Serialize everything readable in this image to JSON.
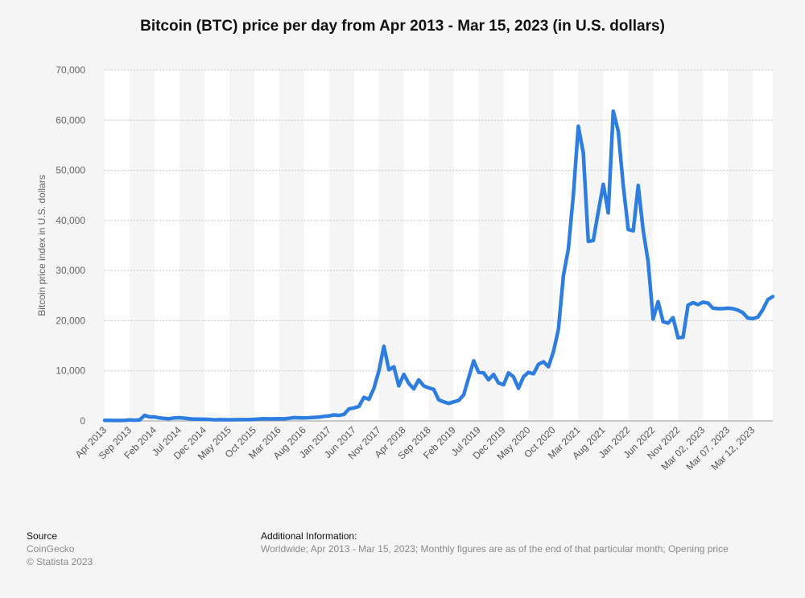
{
  "title": "Bitcoin (BTC) price per day from Apr 2013 - Mar 15, 2023 (in U.S. dollars)",
  "source": {
    "heading": "Source",
    "line1": "CoinGecko",
    "line2": "© Statista 2023"
  },
  "additional_info": {
    "heading": "Additional Information:",
    "text": "Worldwide; Apr 2013 - Mar 15, 2023; Monthly figures are as of the end of that particular month; Opening price"
  },
  "colors": {
    "line": "#2e7de0",
    "band": "#ffffff",
    "grid": "#c8c8c8",
    "background": "#f5f5f5"
  },
  "chart_data": {
    "type": "line",
    "title": "Bitcoin (BTC) price per day from Apr 2013 - Mar 15, 2023 (in U.S. dollars)",
    "ylabel": "Bitcoin price index in U.S. dollars",
    "xlabel": "",
    "ylim": [
      0,
      70000
    ],
    "yticks": [
      0,
      10000,
      20000,
      30000,
      40000,
      50000,
      60000,
      70000
    ],
    "ytick_labels": [
      "0",
      "10,000",
      "20,000",
      "30,000",
      "40,000",
      "50,000",
      "60,000",
      "70,000"
    ],
    "grid": true,
    "legend": "none",
    "xtick_labels": [
      {
        "i": 0,
        "label": "Apr 2013"
      },
      {
        "i": 5,
        "label": "Sep 2013"
      },
      {
        "i": 10,
        "label": "Feb 2014"
      },
      {
        "i": 15,
        "label": "Jul 2014"
      },
      {
        "i": 20,
        "label": "Dec 2014"
      },
      {
        "i": 25,
        "label": "May 2015"
      },
      {
        "i": 30,
        "label": "Oct 2015"
      },
      {
        "i": 35,
        "label": "Mar 2016"
      },
      {
        "i": 40,
        "label": "Aug 2016"
      },
      {
        "i": 45,
        "label": "Jan 2017"
      },
      {
        "i": 50,
        "label": "Jun 2017"
      },
      {
        "i": 55,
        "label": "Nov 2017"
      },
      {
        "i": 60,
        "label": "Apr 2018"
      },
      {
        "i": 65,
        "label": "Sep 2018"
      },
      {
        "i": 70,
        "label": "Feb 2019"
      },
      {
        "i": 75,
        "label": "Jul 2019"
      },
      {
        "i": 80,
        "label": "Dec 2019"
      },
      {
        "i": 85,
        "label": "May 2020"
      },
      {
        "i": 90,
        "label": "Oct 2020"
      },
      {
        "i": 95,
        "label": "Mar 2021"
      },
      {
        "i": 100,
        "label": "Aug 2021"
      },
      {
        "i": 105,
        "label": "Jan 2022"
      },
      {
        "i": 110,
        "label": "Jun 2022"
      },
      {
        "i": 115,
        "label": "Nov 2022"
      },
      {
        "i": 120,
        "label": "Mar 02, 2023"
      },
      {
        "i": 125,
        "label": "Mar 07, 2023"
      },
      {
        "i": 130,
        "label": "Mar 12, 2023"
      }
    ],
    "series": [
      {
        "values": [
          130,
          120,
          100,
          100,
          130,
          200,
          140,
          200,
          1100,
          800,
          800,
          600,
          500,
          450,
          600,
          650,
          550,
          450,
          350,
          350,
          330,
          300,
          230,
          250,
          240,
          230,
          240,
          260,
          250,
          250,
          320,
          380,
          430,
          400,
          420,
          450,
          420,
          530,
          660,
          620,
          610,
          650,
          700,
          770,
          900,
          990,
          1200,
          1100,
          1300,
          2400,
          2600,
          2900,
          4700,
          4300,
          6500,
          10000,
          14900,
          10200,
          10800,
          7000,
          9300,
          7500,
          6400,
          8200,
          7000,
          6600,
          6300,
          4200,
          3800,
          3500,
          3800,
          4100,
          5200,
          8600,
          12000,
          9700,
          9600,
          8200,
          9300,
          7600,
          7200,
          9600,
          8800,
          6500,
          8800,
          9700,
          9400,
          11300,
          11800,
          10800,
          13800,
          18300,
          29000,
          34300,
          45000,
          58800,
          53500,
          35800,
          36000,
          41700,
          47200,
          41500,
          61800,
          57800,
          47000,
          38200,
          37900,
          47000,
          38000,
          31800,
          20300,
          23800,
          19800,
          19500,
          20600,
          16600,
          16700,
          23100,
          23600,
          23200,
          23700,
          23500,
          22500,
          22400,
          22400,
          22500,
          22400,
          22100,
          21600,
          20500,
          20400,
          20700,
          22200,
          24200,
          24800
        ]
      }
    ]
  }
}
